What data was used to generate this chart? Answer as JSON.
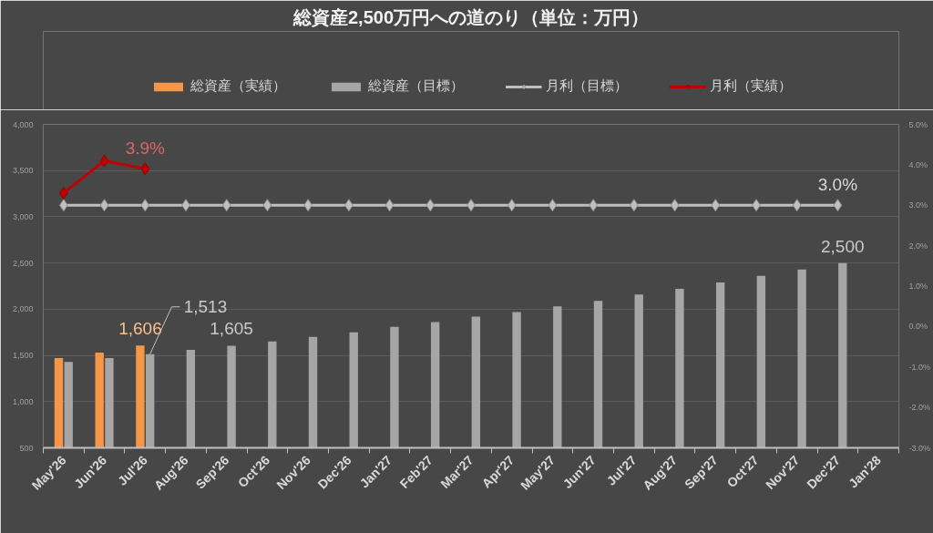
{
  "chart_data": {
    "type": "bar",
    "title": "総資産2,500万円への道のり（単位：万円）",
    "categories": [
      "May'26",
      "Jun'26",
      "Jul'26",
      "Aug'26",
      "Sep'26",
      "Oct'26",
      "Nov'26",
      "Dec'26",
      "Jan'27",
      "Feb'27",
      "Mar'27",
      "Apr'27",
      "May'27",
      "Jun'27",
      "Jul'27",
      "Aug'27",
      "Sep'27",
      "Oct'27",
      "Nov'27",
      "Dec'27",
      "Jan'28"
    ],
    "series": [
      {
        "name": "総資産（実績）",
        "color": "#f79646",
        "values": [
          1470,
          1530,
          1606,
          null,
          null,
          null,
          null,
          null,
          null,
          null,
          null,
          null,
          null,
          null,
          null,
          null,
          null,
          null,
          null,
          null,
          null
        ],
        "value_labels": [
          null,
          null,
          "1,606",
          null,
          null,
          null,
          null,
          null,
          null,
          null,
          null,
          null,
          null,
          null,
          null,
          null,
          null,
          null,
          null,
          null,
          null
        ]
      },
      {
        "name": "総資産（目標）",
        "color": "#a6a6a6",
        "values": [
          1430,
          1470,
          1513,
          1560,
          1605,
          1650,
          1700,
          1750,
          1810,
          1860,
          1920,
          1970,
          2030,
          2090,
          2160,
          2220,
          2290,
          2360,
          2430,
          2500,
          null
        ],
        "value_labels": [
          null,
          null,
          "1,513",
          null,
          "1,605",
          null,
          null,
          null,
          null,
          null,
          null,
          null,
          null,
          null,
          null,
          null,
          null,
          null,
          null,
          "2,500",
          null
        ]
      },
      {
        "name": "月利（目標）",
        "type": "line",
        "axis": "y2",
        "color": "#bfbfbf",
        "values": [
          3.0,
          3.0,
          3.0,
          3.0,
          3.0,
          3.0,
          3.0,
          3.0,
          3.0,
          3.0,
          3.0,
          3.0,
          3.0,
          3.0,
          3.0,
          3.0,
          3.0,
          3.0,
          3.0,
          3.0,
          null
        ],
        "value_labels": [
          null,
          null,
          null,
          null,
          null,
          null,
          null,
          null,
          null,
          null,
          null,
          null,
          null,
          null,
          null,
          null,
          null,
          null,
          null,
          "3.0%",
          null
        ]
      },
      {
        "name": "月利（実績）",
        "type": "line",
        "axis": "y2",
        "color": "#c00000",
        "values": [
          3.3,
          4.1,
          3.9,
          null,
          null,
          null,
          null,
          null,
          null,
          null,
          null,
          null,
          null,
          null,
          null,
          null,
          null,
          null,
          null,
          null,
          null
        ],
        "value_labels": [
          null,
          null,
          "3.9%",
          null,
          null,
          null,
          null,
          null,
          null,
          null,
          null,
          null,
          null,
          null,
          null,
          null,
          null,
          null,
          null,
          null,
          null
        ]
      }
    ],
    "ylim": [
      500,
      4000
    ],
    "yticks": [
      500,
      {
        "value": 1000,
        "label": "1,000"
      },
      {
        "value": 1500,
        "label": "1,500"
      },
      {
        "value": 2000,
        "label": "2,000"
      },
      {
        "value": 2500,
        "label": "2,500"
      },
      {
        "value": 3000,
        "label": "3,000"
      },
      {
        "value": 3500,
        "label": "3,500"
      },
      {
        "value": 4000,
        "label": "4,000"
      }
    ],
    "y2lim": [
      -3,
      5
    ],
    "y2ticks": [
      {
        "value": -3,
        "label": "-3.0%"
      },
      {
        "value": -2,
        "label": "-2.0%"
      },
      {
        "value": -1,
        "label": "-1.0%"
      },
      {
        "value": 0,
        "label": "0.0%"
      },
      {
        "value": 1,
        "label": "1.0%"
      },
      {
        "value": 2,
        "label": "2.0%"
      },
      {
        "value": 3,
        "label": "3.0%"
      },
      {
        "value": 4,
        "label": "4.0%"
      },
      {
        "value": 5,
        "label": "5.0%"
      }
    ],
    "grid": "y",
    "legend": "top",
    "marker": "diamond",
    "line_style": "solid"
  }
}
